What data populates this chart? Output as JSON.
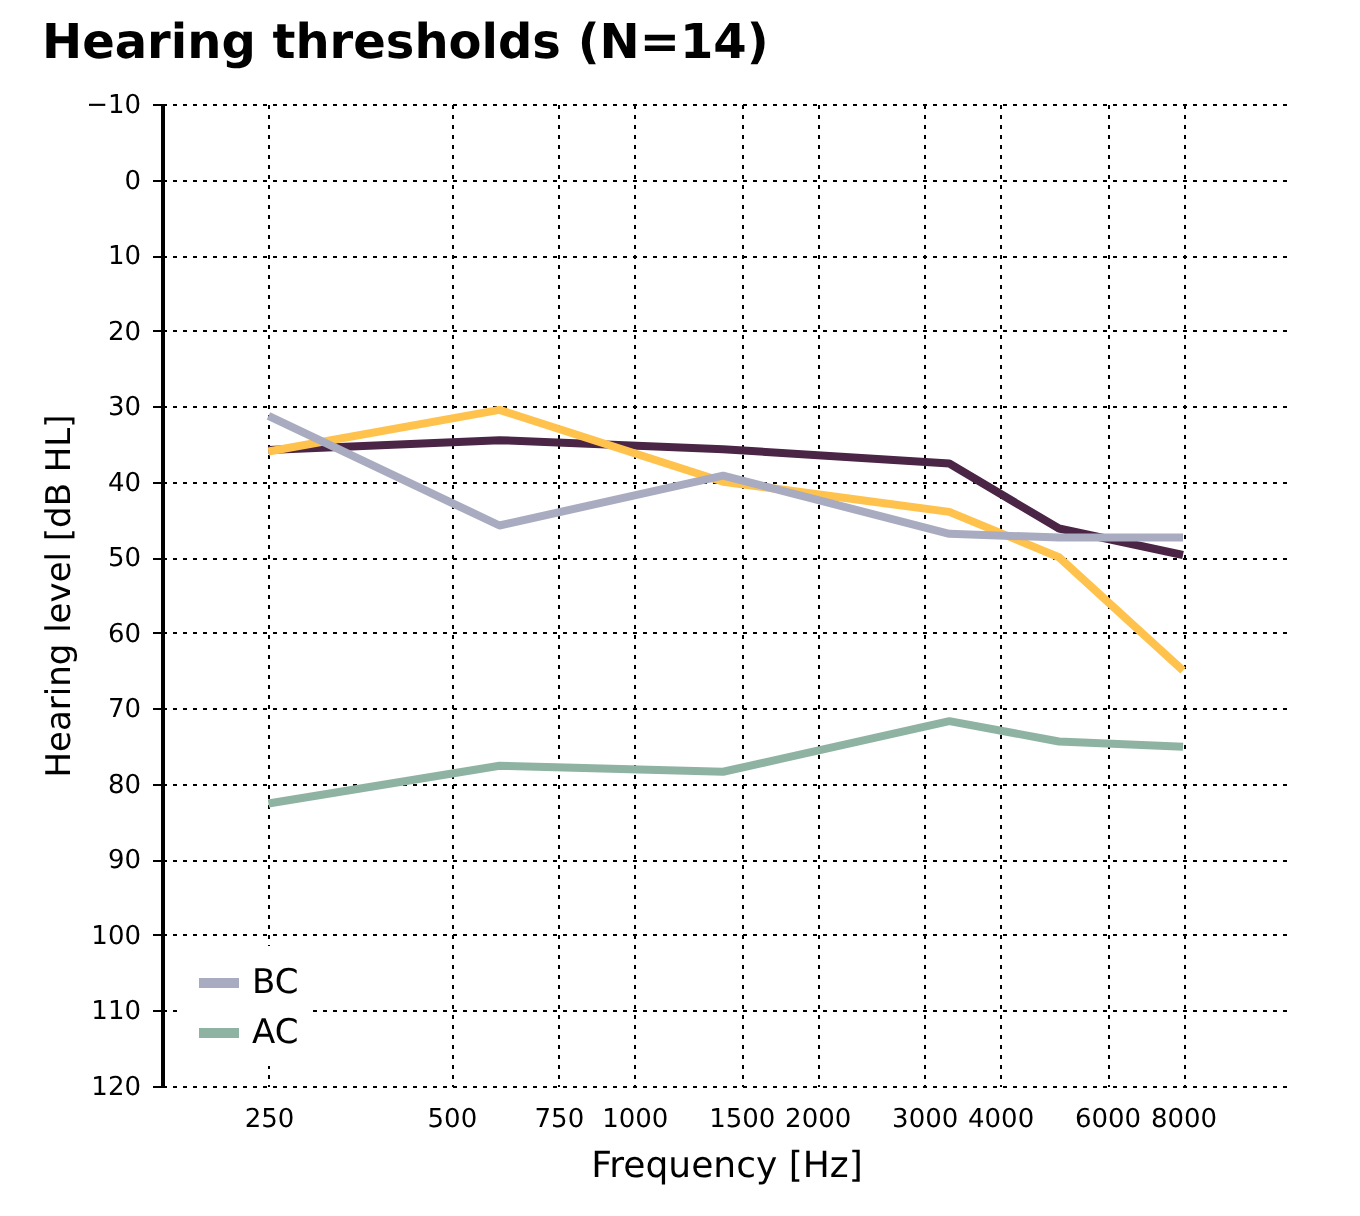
{
  "chart_data": {
    "type": "line",
    "title": "Hearing thresholds (N=14)",
    "xlabel": "Frequency [Hz]",
    "ylabel": "Hearing level [dB HL]",
    "x": [
      250,
      600,
      1400,
      3300,
      5000,
      8000
    ],
    "series": [
      {
        "color": "#4a2545",
        "values": [
          35.8,
          34.5,
          35.7,
          37.6,
          46.2,
          49.7
        ]
      },
      {
        "color": "#ffc34d",
        "values": [
          36,
          30.5,
          40,
          44,
          50,
          65
        ]
      },
      {
        "name": "BC",
        "color": "#a9acc0",
        "values": [
          31.3,
          45.8,
          39.2,
          46.9,
          47.4,
          47.4
        ]
      },
      {
        "name": "AC",
        "color": "#8fb3a3",
        "values": [
          82.6,
          77.6,
          78.4,
          71.7,
          74.4,
          75.1
        ]
      }
    ],
    "log": "x",
    "xlim": [
      167,
      12000
    ],
    "xticks": [
      250,
      500,
      750,
      1000,
      1500,
      2000,
      3000,
      4000,
      6000,
      8000
    ],
    "ylim": [
      120,
      -10
    ],
    "yticks": [
      -10,
      0,
      10,
      20,
      30,
      40,
      50,
      60,
      70,
      80,
      90,
      100,
      110,
      120
    ],
    "grid": true,
    "legend": "bottom left",
    "marker": "none",
    "line_style": "solid"
  }
}
